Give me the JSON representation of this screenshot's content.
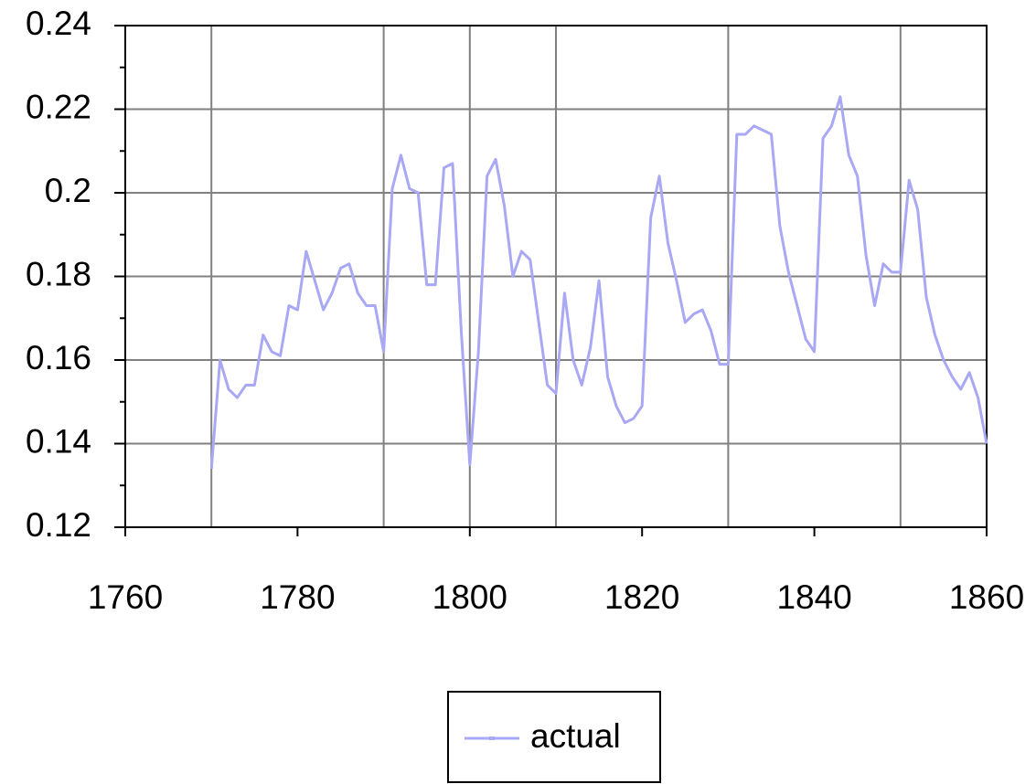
{
  "chart_data": {
    "type": "line",
    "x": [
      1770,
      1771,
      1772,
      1773,
      1774,
      1775,
      1776,
      1777,
      1778,
      1779,
      1780,
      1781,
      1782,
      1783,
      1784,
      1785,
      1786,
      1787,
      1788,
      1789,
      1790,
      1791,
      1792,
      1793,
      1794,
      1795,
      1796,
      1797,
      1798,
      1799,
      1800,
      1801,
      1802,
      1803,
      1804,
      1805,
      1806,
      1807,
      1808,
      1809,
      1810,
      1811,
      1812,
      1813,
      1814,
      1815,
      1816,
      1817,
      1818,
      1819,
      1820,
      1821,
      1822,
      1823,
      1824,
      1825,
      1826,
      1827,
      1828,
      1829,
      1830,
      1831,
      1832,
      1833,
      1834,
      1835,
      1836,
      1837,
      1838,
      1839,
      1840,
      1841,
      1842,
      1843,
      1844,
      1845,
      1846,
      1847,
      1848,
      1849,
      1850,
      1851,
      1852,
      1853,
      1854,
      1855,
      1856,
      1857,
      1858,
      1859,
      1860
    ],
    "series": [
      {
        "name": "actual",
        "color": "#a8a8f4",
        "values": [
          0.134,
          0.16,
          0.153,
          0.151,
          0.154,
          0.154,
          0.166,
          0.162,
          0.161,
          0.173,
          0.172,
          0.186,
          0.179,
          0.172,
          0.176,
          0.182,
          0.183,
          0.176,
          0.173,
          0.173,
          0.162,
          0.201,
          0.209,
          0.201,
          0.2,
          0.178,
          0.178,
          0.206,
          0.207,
          0.167,
          0.135,
          0.162,
          0.204,
          0.208,
          0.197,
          0.18,
          0.186,
          0.184,
          0.169,
          0.154,
          0.152,
          0.176,
          0.16,
          0.154,
          0.163,
          0.179,
          0.156,
          0.149,
          0.145,
          0.146,
          0.149,
          0.194,
          0.204,
          0.188,
          0.179,
          0.169,
          0.171,
          0.172,
          0.167,
          0.159,
          0.159,
          0.214,
          0.214,
          0.216,
          0.215,
          0.214,
          0.192,
          0.181,
          0.173,
          0.165,
          0.162,
          0.213,
          0.216,
          0.223,
          0.209,
          0.204,
          0.185,
          0.173,
          0.183,
          0.181,
          0.181,
          0.203,
          0.196,
          0.175,
          0.166,
          0.16,
          0.156,
          0.153,
          0.157,
          0.151,
          0.14
        ]
      }
    ],
    "xlim": [
      1760,
      1860
    ],
    "xticks": [
      1760,
      1780,
      1800,
      1820,
      1840,
      1860
    ],
    "xgrid": [
      1770,
      1790,
      1800,
      1810,
      1830,
      1850
    ],
    "ylim": [
      0.12,
      0.24
    ],
    "yticks": [
      0.12,
      0.14,
      0.16,
      0.18,
      0.2,
      0.22,
      0.24
    ],
    "yminorticks": [
      0.13,
      0.15,
      0.17,
      0.19,
      0.21,
      0.23
    ],
    "grid": true,
    "legend": "bottom"
  }
}
